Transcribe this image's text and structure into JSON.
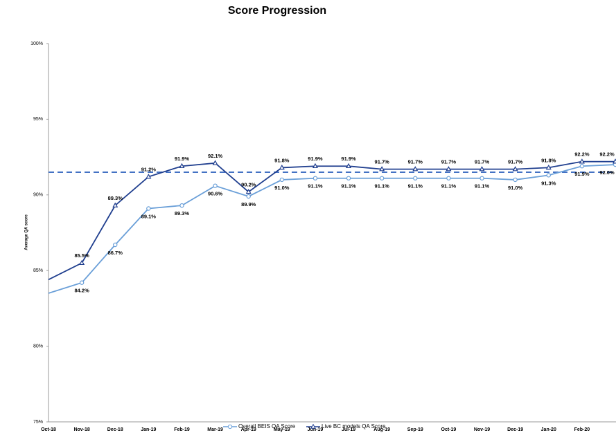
{
  "chart_data": {
    "type": "line",
    "title": "Score Progression",
    "y_label": "Average QA score",
    "categories": [
      "Oct-18",
      "Nov-18",
      "Dec-18",
      "Jan-19",
      "Feb-19",
      "Mar-19",
      "Apr-19",
      "May-19",
      "Jun-19",
      "Jul-19",
      "Aug-19",
      "Sep-19",
      "Oct-19",
      "Nov-19",
      "Dec-19",
      "Jan-20",
      "Feb-20",
      null
    ],
    "series": [
      {
        "name": "Overall BEIS QA Score",
        "color": "#6a9fd8",
        "marker": "circle",
        "values": [
          83.5,
          84.2,
          86.7,
          89.1,
          89.3,
          90.6,
          89.9,
          91.0,
          91.1,
          91.1,
          91.1,
          91.1,
          91.1,
          91.1,
          91.0,
          91.3,
          91.9,
          92.0
        ],
        "value_labels": [
          null,
          "84.2%",
          "86.7%",
          "89.1%",
          "89.3%",
          "90.6%",
          "89.9%",
          "91.0%",
          "91.1%",
          "91.1%",
          "91.1%",
          "91.1%",
          "91.1%",
          "91.1%",
          "91.0%",
          "91.3%",
          "91.9%",
          "92.0%"
        ]
      },
      {
        "name": "Live BC models QA Score",
        "color": "#203f8f",
        "marker": "triangle",
        "values": [
          84.4,
          85.5,
          89.3,
          91.2,
          91.9,
          92.1,
          90.2,
          91.8,
          91.9,
          91.9,
          91.7,
          91.7,
          91.7,
          91.7,
          91.7,
          91.8,
          92.2,
          92.2
        ],
        "value_labels": [
          null,
          "85.5%",
          "89.3%",
          "91.2%",
          "91.9%",
          "92.1%",
          "90.2%",
          "91.8%",
          "91.9%",
          "91.9%",
          "91.7%",
          "91.7%",
          "91.7%",
          "91.7%",
          "91.7%",
          "91.8%",
          "92.2%",
          "92.2%"
        ]
      }
    ],
    "reference_line": {
      "value": 91.5,
      "color": "#4472c4"
    },
    "ylim": [
      75,
      100
    ],
    "yticks": [
      {
        "value": 75,
        "label": "75%"
      },
      {
        "value": 80,
        "label": "80%"
      },
      {
        "value": 85,
        "label": "85%"
      },
      {
        "value": 90,
        "label": "90%"
      },
      {
        "value": 95,
        "label": "95%"
      },
      {
        "value": 100,
        "label": "100%"
      }
    ],
    "legend": "bottom"
  }
}
